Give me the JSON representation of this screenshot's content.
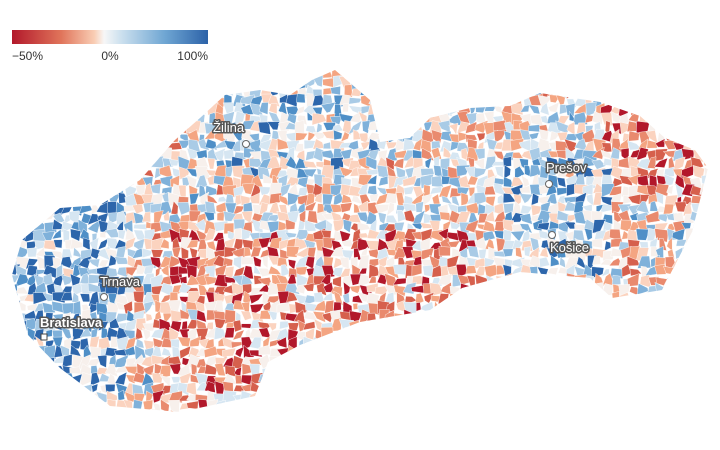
{
  "legend": {
    "labels": [
      "−50%",
      "0%",
      "100%"
    ]
  },
  "cities": [
    {
      "name": "Žilina"
    },
    {
      "name": "Trnava"
    },
    {
      "name": "Bratislava"
    },
    {
      "name": "Prešov"
    },
    {
      "name": "Košice"
    }
  ]
}
